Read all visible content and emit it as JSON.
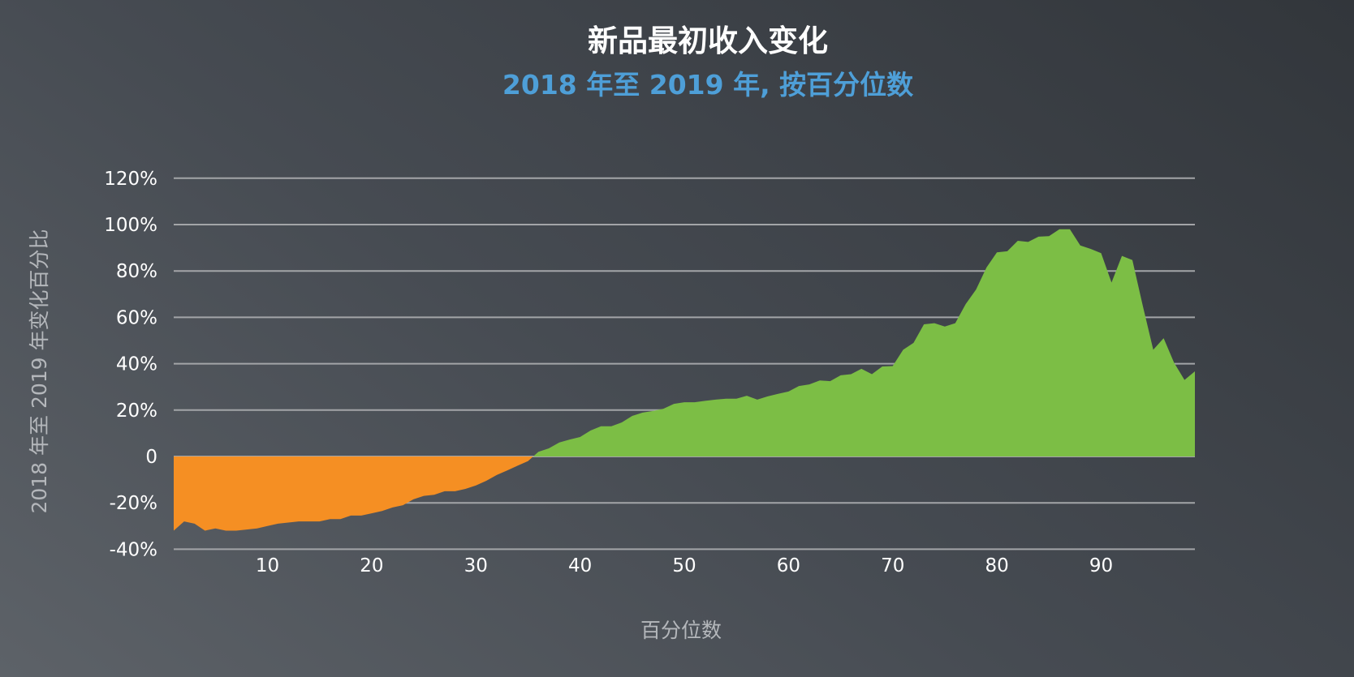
{
  "chart_data": {
    "type": "area",
    "title": "新品最初收入变化",
    "subtitle": "2018 年至 2019 年, 按百分位数",
    "xlabel": "百分位数",
    "ylabel": "2018 年至 2019 年变化百分比",
    "xlim": [
      1,
      99
    ],
    "ylim": [
      -40,
      120
    ],
    "grid": true,
    "x_ticks": [
      10,
      20,
      30,
      40,
      50,
      60,
      70,
      80,
      90
    ],
    "x_tick_labels": [
      "10",
      "20",
      "30",
      "40",
      "50",
      "60",
      "70",
      "80",
      "90"
    ],
    "y_ticks": [
      -40,
      -20,
      0,
      20,
      40,
      60,
      80,
      100,
      120
    ],
    "y_tick_labels": [
      "-40%",
      "-20%",
      "0",
      "20%",
      "40%",
      "60%",
      "80%",
      "100%",
      "120%"
    ],
    "colors": {
      "positive": "#7cbe45",
      "negative": "#f58f23",
      "grid": "#a3a5a8"
    },
    "x": [
      1,
      2,
      3,
      4,
      5,
      6,
      7,
      8,
      9,
      10,
      11,
      12,
      13,
      14,
      15,
      16,
      17,
      18,
      19,
      20,
      21,
      22,
      23,
      24,
      25,
      26,
      27,
      28,
      29,
      30,
      31,
      32,
      33,
      34,
      35,
      36,
      37,
      38,
      39,
      40,
      41,
      42,
      43,
      44,
      45,
      46,
      47,
      48,
      49,
      50,
      51,
      52,
      53,
      54,
      55,
      56,
      57,
      58,
      59,
      60,
      61,
      62,
      63,
      64,
      65,
      66,
      67,
      68,
      69,
      70,
      71,
      72,
      73,
      74,
      75,
      76,
      77,
      78,
      79,
      80,
      81,
      82,
      83,
      84,
      85,
      86,
      87,
      88,
      89,
      90,
      91,
      92,
      93,
      94,
      95,
      96,
      97,
      98,
      99
    ],
    "values": [
      -32,
      -28,
      -29,
      -32,
      -31,
      -32,
      -32,
      -31.5,
      -31,
      -30,
      -29,
      -28.5,
      -28,
      -28,
      -28,
      -27,
      -27,
      -25.5,
      -25.5,
      -24.5,
      -23.5,
      -22,
      -21,
      -18.5,
      -17,
      -16.5,
      -15,
      -15,
      -14,
      -12.5,
      -10.5,
      -8,
      -6,
      -4,
      -2,
      2,
      3.5,
      6,
      7.3,
      8.4,
      11.2,
      13,
      13,
      14.7,
      17.5,
      18.9,
      19.6,
      20.6,
      22.7,
      23.4,
      23.4,
      24,
      24.5,
      24.9,
      24.9,
      26.2,
      24.5,
      25.9,
      27,
      28,
      30.4,
      31.1,
      32.8,
      32.5,
      35,
      35.5,
      37.8,
      35.5,
      38.8,
      39,
      46,
      49,
      57,
      57.5,
      56,
      57.5,
      65.7,
      72,
      81.5,
      88,
      88.5,
      93,
      92.5,
      94.8,
      95,
      98,
      98,
      91,
      89.5,
      87.7,
      75,
      86.5,
      84.7,
      65,
      46,
      51,
      40.5,
      33,
      36.7
    ]
  }
}
